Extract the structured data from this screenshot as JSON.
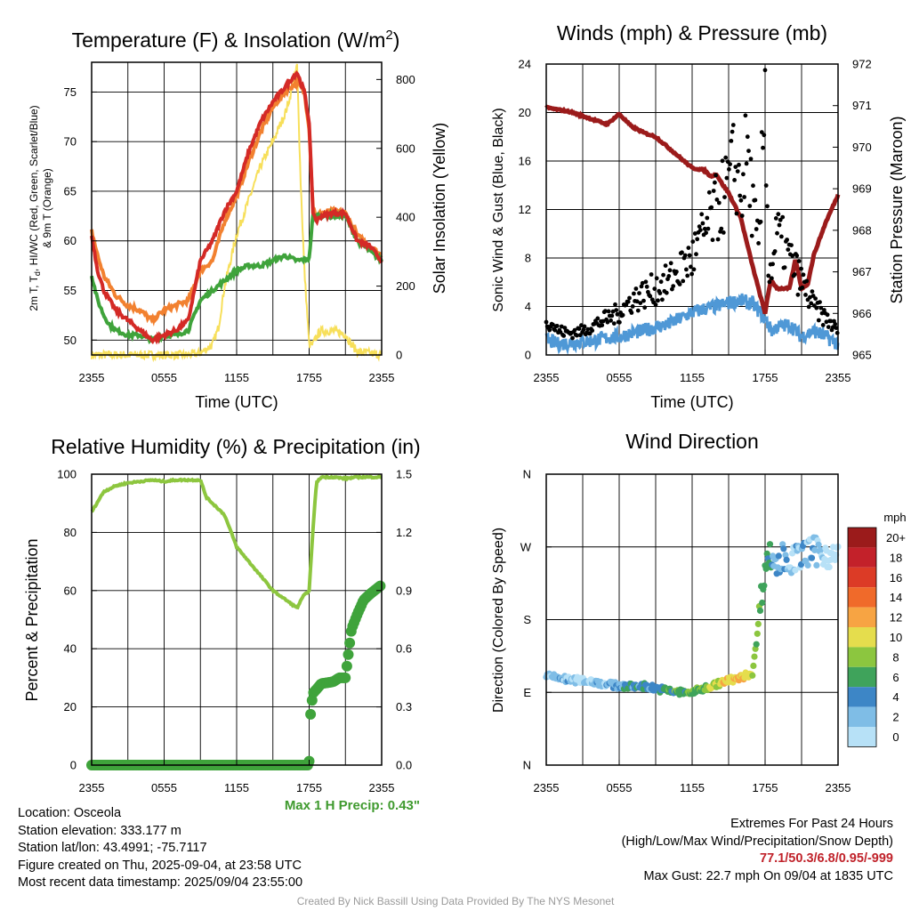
{
  "panels": {
    "temperature": {
      "title": "Temperature (F) & Insolation (W/m",
      "title_sup": "2",
      "title_close": ")",
      "ylabel_left_line1": "2m T, T",
      "ylabel_left_sub": "d",
      "ylabel_left_line1_rest": ", HI/WC (Red, Green, Scarlet/Blue)",
      "ylabel_left_line2": "& 9m T (Orange)",
      "ylabel_right": "Solar Insolation (Yellow)",
      "xlabel": "Time (UTC)"
    },
    "winds": {
      "title": "Winds (mph) & Pressure (mb)",
      "ylabel_left": "Sonic Wind & Gust (Blue, Black)",
      "ylabel_right": "Station Pressure (Maroon)",
      "xlabel": "Time (UTC)"
    },
    "humidity": {
      "title": "Relative Humidity (%) & Precipitation (in)",
      "ylabel_left": "Percent & Precipitation",
      "max_precip_label": "Max 1 H Precip: 0.43\""
    },
    "direction": {
      "title": "Wind Direction",
      "ylabel_left": "Direction (Colored By Speed)",
      "legend_title": "mph",
      "legend_labels": [
        "20+",
        "18",
        "16",
        "14",
        "12",
        "10",
        "8",
        "6",
        "4",
        "2",
        "0"
      ]
    }
  },
  "info": {
    "location": "Location: Osceola",
    "elevation": "Station elevation: 333.177 m",
    "latlon": "Station lat/lon: 43.4991; -75.7117",
    "created": "Figure created on Thu, 2025-09-04, at 23:58 UTC",
    "recent": "Most recent data timestamp: 2025/09/04 23:55:00",
    "extremes_title": "Extremes For Past 24 Hours",
    "extremes_sub": "(High/Low/Max Wind/Precipitation/Snow Depth)",
    "extremes_values": "77.1/50.3/6.8/0.95/-999",
    "max_gust": "Max Gust: 22.7 mph On 09/04 at 1835 UTC",
    "credit": "Created By Nick Bassill Using Data Provided By The NYS Mesonet"
  },
  "colors": {
    "temp_red": "#d42a26",
    "dewpoint_green": "#3fa33b",
    "nine_m_orange": "#f28130",
    "solar_yellow": "#f7df5a",
    "wind_blue": "#4f98d6",
    "gust_black": "#000000",
    "pressure_maroon": "#9b1b1b",
    "rh_lightgreen": "#8dc63f",
    "precip_green": "#3fa33b",
    "highlight_red": "#c0222a",
    "speed_scale": [
      "#b7e1f7",
      "#7fbde6",
      "#3d86c6",
      "#3fa35b",
      "#8cc63f",
      "#e5dd4d",
      "#f7a443",
      "#f06a2a",
      "#dc3b26",
      "#c3212a",
      "#9b1b1b"
    ]
  },
  "chart_data": [
    {
      "type": "line",
      "title": "Temperature (F) & Insolation (W/m2)",
      "xlabel": "Time (UTC)",
      "ylabel": "2m T, Td, HI/WC (Red, Green, Scarlet/Blue) & 9m T (Orange)",
      "y2label": "Solar Insolation (Yellow)",
      "x_ticks": [
        "2355",
        "0555",
        "1155",
        "1755",
        "2355"
      ],
      "xlim": [
        0,
        24
      ],
      "ylim": [
        48.5,
        78
      ],
      "y_ticks": [
        50,
        55,
        60,
        65,
        70,
        75
      ],
      "y2lim": [
        0,
        850
      ],
      "y2_ticks": [
        0,
        200,
        400,
        600,
        800
      ],
      "grid": true,
      "series": [
        {
          "name": "2m T",
          "axis": "left",
          "x": [
            0,
            0.5,
            1,
            1.5,
            2,
            3,
            4,
            5,
            6,
            7,
            8,
            9,
            10,
            11,
            12,
            13,
            14,
            15,
            16,
            17,
            17.6,
            18,
            18.3,
            18.6,
            19,
            20,
            21,
            22,
            23,
            24
          ],
          "values": [
            60.5,
            57,
            55,
            54,
            53,
            52,
            51,
            50,
            50.5,
            51,
            52,
            58,
            60,
            63,
            65,
            69,
            72,
            74,
            75.5,
            77,
            75,
            72,
            63,
            62,
            62.5,
            62.8,
            62.8,
            60,
            59.5,
            58
          ]
        },
        {
          "name": "9m T",
          "axis": "left",
          "x": [
            0,
            0.5,
            1,
            1.5,
            2,
            3,
            4,
            5,
            6,
            7,
            8,
            9,
            10,
            11,
            12,
            13,
            14,
            15,
            16,
            17,
            17.6,
            18,
            18.3,
            18.6,
            19,
            20,
            21,
            22,
            23,
            24
          ],
          "values": [
            61,
            58.5,
            56.5,
            55.5,
            54.5,
            53.5,
            53,
            52,
            53,
            53.5,
            54,
            57,
            58,
            62,
            64.5,
            68,
            71,
            73.5,
            75,
            76,
            75,
            71.5,
            63.5,
            62.5,
            62.8,
            63,
            62.8,
            60.5,
            59.5,
            58.5
          ]
        },
        {
          "name": "2m Td",
          "axis": "left",
          "x": [
            0,
            0.5,
            1,
            1.5,
            2,
            3,
            4,
            5,
            6,
            7,
            8,
            9,
            10,
            11,
            12,
            13,
            14,
            15,
            16,
            17,
            18,
            18.3,
            19,
            20,
            21,
            22,
            23,
            24
          ],
          "values": [
            56.5,
            54,
            52.5,
            51.5,
            51,
            50.5,
            50.5,
            50,
            50.5,
            50.5,
            51,
            54,
            55,
            56,
            57,
            57.5,
            57.5,
            58,
            58.5,
            58,
            58.2,
            62.5,
            62.5,
            62.5,
            62.5,
            60,
            59,
            58
          ]
        },
        {
          "name": "Solar Insolation",
          "axis": "right",
          "x": [
            0,
            8,
            9,
            10,
            10.5,
            11,
            12,
            13,
            14,
            15,
            16,
            16.5,
            17,
            17.3,
            17.6,
            18,
            18.3,
            18.7,
            19,
            20,
            21,
            21.5,
            22,
            23,
            24
          ],
          "values": [
            0,
            0,
            5,
            30,
            80,
            200,
            350,
            450,
            550,
            620,
            700,
            760,
            840,
            500,
            250,
            30,
            30,
            60,
            70,
            70,
            60,
            30,
            10,
            5,
            0
          ]
        }
      ]
    },
    {
      "type": "line",
      "title": "Winds (mph) & Pressure (mb)",
      "xlabel": "Time (UTC)",
      "ylabel": "Sonic Wind & Gust (Blue, Black)",
      "y2label": "Station Pressure (Maroon)",
      "x_ticks": [
        "2355",
        "0555",
        "1155",
        "1755",
        "2355"
      ],
      "xlim": [
        0,
        24
      ],
      "ylim": [
        0,
        24
      ],
      "y_ticks": [
        0,
        4,
        8,
        12,
        16,
        20,
        24
      ],
      "y2lim": [
        965,
        972
      ],
      "y2_ticks": [
        965,
        966,
        967,
        968,
        969,
        970,
        971,
        972
      ],
      "grid": true,
      "series": [
        {
          "name": "Sonic Wind",
          "axis": "left",
          "x": [
            0,
            1,
            2,
            3,
            4,
            5,
            6,
            7,
            8,
            9,
            10,
            11,
            12,
            13,
            14,
            15,
            16,
            17,
            18,
            18.5,
            19,
            20,
            21,
            22,
            23,
            24
          ],
          "values": [
            1.2,
            0.9,
            1.0,
            1.1,
            1.2,
            1.4,
            1.5,
            1.8,
            2.0,
            2.3,
            2.5,
            3.0,
            3.5,
            3.8,
            4.0,
            4.3,
            4.5,
            4.2,
            3.0,
            2.0,
            2.3,
            2.5,
            1.5,
            2.0,
            1.5,
            0.9
          ]
        },
        {
          "name": "Gust",
          "axis": "left",
          "x": [
            0,
            1,
            2,
            3,
            4,
            5,
            6,
            7,
            8,
            9,
            10,
            11,
            12,
            13,
            14,
            15,
            15.5,
            16,
            16.5,
            17,
            17.5,
            18,
            18.3,
            19,
            20,
            21,
            22,
            23,
            24
          ],
          "values": [
            3,
            2,
            1.8,
            2,
            2.5,
            3,
            3.5,
            4.5,
            5,
            5.5,
            6,
            7,
            8,
            10,
            12,
            14,
            16,
            13,
            17,
            12,
            8,
            22.7,
            6,
            10,
            8,
            6,
            4,
            3,
            2
          ]
        },
        {
          "name": "Station Pressure",
          "axis": "right",
          "x": [
            0,
            1,
            2,
            3,
            4,
            5,
            6,
            7,
            8,
            9,
            10,
            11,
            12,
            13,
            13.5,
            14,
            14.5,
            15,
            16,
            17,
            18,
            18.2,
            18.5,
            19,
            20,
            20.5,
            21,
            21.5,
            22,
            23,
            24
          ],
          "values": [
            970.95,
            970.9,
            970.85,
            970.75,
            970.65,
            970.55,
            970.8,
            970.5,
            970.35,
            970.25,
            970,
            969.75,
            969.5,
            969.45,
            969.3,
            969.35,
            969.1,
            968.9,
            968.3,
            967.1,
            966,
            966.4,
            966.8,
            966.6,
            966.6,
            967.3,
            966.6,
            966.7,
            967.4,
            968.2,
            968.85
          ]
        }
      ]
    },
    {
      "type": "line",
      "title": "Relative Humidity (%) & Precipitation (in)",
      "ylabel": "Percent & Precipitation",
      "x_ticks": [
        "2355",
        "0555",
        "1155",
        "1755",
        "2355"
      ],
      "xlim": [
        0,
        24
      ],
      "ylim": [
        0,
        100
      ],
      "y_ticks": [
        0,
        20,
        40,
        60,
        80,
        100
      ],
      "y2lim": [
        0,
        1.5
      ],
      "y2_ticks": [
        "0.0",
        "0.3",
        "0.6",
        "0.9",
        "1.2",
        "1.5"
      ],
      "grid": true,
      "series": [
        {
          "name": "Relative Humidity",
          "axis": "left",
          "x": [
            0,
            1,
            2,
            3,
            4,
            5,
            6,
            7,
            8,
            9,
            9.5,
            10,
            11,
            12,
            13,
            14,
            15,
            16,
            17,
            17.5,
            18,
            18.3,
            18.6,
            19,
            20,
            21,
            22,
            23,
            24
          ],
          "values": [
            87,
            94,
            96,
            97,
            97.5,
            98,
            97.5,
            98,
            98,
            98,
            92,
            90,
            86,
            75,
            70,
            65,
            60,
            57,
            54,
            58,
            60,
            80,
            97,
            99,
            99,
            98.5,
            99,
            99,
            99
          ]
        },
        {
          "name": "Precipitation",
          "axis": "right",
          "x": [
            0,
            2,
            4,
            6,
            8,
            10,
            12,
            14,
            16,
            17.9,
            18,
            18.1,
            18.3,
            18.6,
            19,
            20,
            20.5,
            21,
            21.3,
            21.5,
            22,
            22.5,
            23,
            24
          ],
          "values": [
            0,
            0,
            0,
            0,
            0,
            0,
            0,
            0,
            0,
            0,
            0.02,
            0.25,
            0.37,
            0.39,
            0.42,
            0.43,
            0.45,
            0.45,
            0.6,
            0.7,
            0.78,
            0.85,
            0.88,
            0.93
          ]
        }
      ]
    },
    {
      "type": "scatter",
      "title": "Wind Direction",
      "ylabel": "Direction (Colored By Speed)",
      "x_ticks": [
        "2355",
        "0555",
        "1155",
        "1755",
        "2355"
      ],
      "xlim": [
        0,
        24
      ],
      "y_ticks": [
        "N",
        "E",
        "S",
        "W",
        "N"
      ],
      "ylim": [
        0,
        360
      ],
      "grid": true,
      "legend": "right",
      "series": [
        {
          "name": "direction",
          "x": [
            0,
            1,
            2,
            3,
            4,
            5,
            6,
            7,
            8,
            9,
            10,
            11,
            12,
            13,
            14,
            15,
            16,
            17,
            18,
            18.5,
            19,
            19.5,
            20,
            21,
            22,
            23,
            24
          ],
          "values": [
            110,
            108,
            105,
            105,
            103,
            100,
            98,
            97,
            98,
            95,
            92,
            90,
            90,
            95,
            100,
            105,
            108,
            115,
            250,
            260,
            245,
            260,
            250,
            260,
            265,
            262,
            255
          ],
          "speed": [
            1,
            1,
            1,
            0,
            1,
            1,
            2,
            2,
            2,
            2,
            3,
            3,
            3,
            4,
            5,
            5,
            6,
            4,
            3,
            2,
            1,
            2,
            1,
            1,
            1,
            0,
            0
          ]
        }
      ]
    }
  ]
}
